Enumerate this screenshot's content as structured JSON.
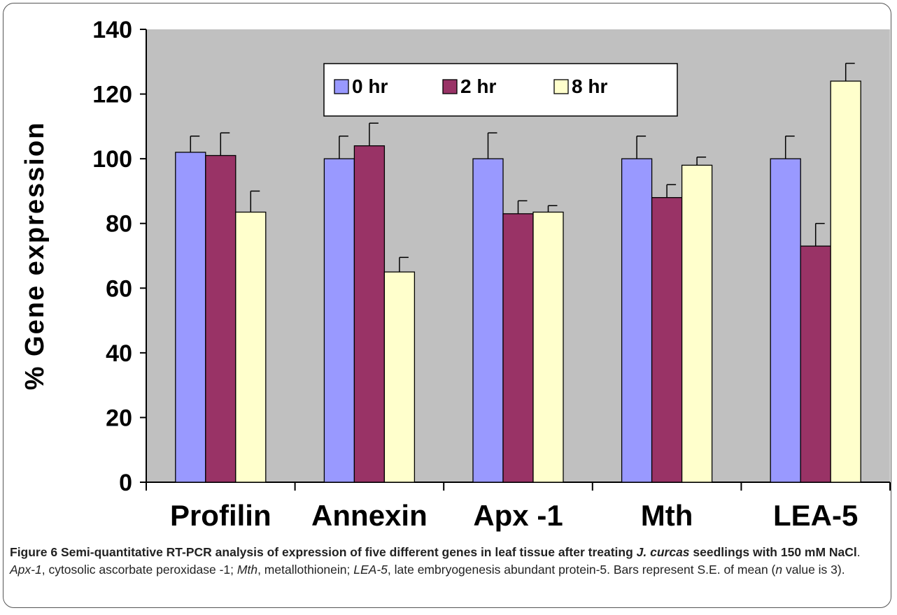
{
  "chart_data": {
    "type": "bar",
    "ylabel": "% Gene expression",
    "xlabel": "",
    "ylim": [
      0,
      140
    ],
    "yticks": [
      0,
      20,
      40,
      60,
      80,
      100,
      120,
      140
    ],
    "grid": false,
    "legend_position": "top-center",
    "categories": [
      "Profilin",
      "Annexin",
      "Apx -1",
      "Mth",
      "LEA-5"
    ],
    "series": [
      {
        "name": "0 hr",
        "color": "#9999ff",
        "values": [
          102,
          100,
          100,
          100,
          100
        ],
        "errors": [
          5,
          7,
          8,
          7,
          7
        ]
      },
      {
        "name": "2 hr",
        "color": "#993366",
        "values": [
          101,
          104,
          83,
          88,
          73
        ],
        "errors": [
          7,
          7,
          4,
          4,
          7
        ]
      },
      {
        "name": "8 hr",
        "color": "#ffffcc",
        "values": [
          83.5,
          65,
          83.5,
          98,
          124
        ],
        "errors": [
          6.5,
          4.5,
          2,
          2.5,
          5.5
        ]
      }
    ],
    "plot_background": "#c0c0c0"
  },
  "caption": {
    "label": "Figure 6",
    "title_part1": " Semi-quantitative RT-PCR analysis of expression of five different genes in leaf tissue after treating ",
    "title_italic": "J. curcas",
    "title_part2": " seedlings with 150 mM NaCl",
    "sep1": ". ",
    "abbr1": "Apx-1",
    "def1": ", cytosolic ascorbate peroxidase -1; ",
    "abbr2": "Mth",
    "def2": ", metallothionein; ",
    "abbr3": "LEA-5",
    "def3": ", late embryogenesis abundant protein-5. Bars represent S.E. of mean (",
    "n_italic": "n",
    "def4": " value is 3)."
  }
}
